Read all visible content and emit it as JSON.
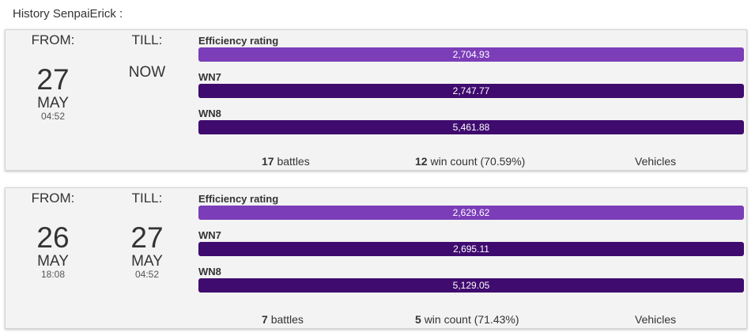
{
  "header": {
    "title": "History SenpaiErick :"
  },
  "labels": {
    "from": "FROM:",
    "till": "TILL:",
    "efficiency": "Efficiency rating",
    "wn7": "WN7",
    "wn8": "WN8",
    "battles_suffix": "battles",
    "wins_suffix": "win count",
    "vehicles": "Vehicles"
  },
  "colors": {
    "efficiency_bar": "#7b3db8",
    "wn_bar": "#3f0b6e",
    "card_bg": "#f3f3f3"
  },
  "cards": [
    {
      "from": {
        "day": "27",
        "month": "MAY",
        "time": "04:52"
      },
      "till": {
        "now": "NOW"
      },
      "efficiency": "2,704.93",
      "wn7": "2,747.77",
      "wn8": "5,461.88",
      "battles": "17",
      "wins": "12",
      "win_pct": "(70.59%)"
    },
    {
      "from": {
        "day": "26",
        "month": "MAY",
        "time": "18:08"
      },
      "till": {
        "day": "27",
        "month": "MAY",
        "time": "04:52"
      },
      "efficiency": "2,629.62",
      "wn7": "2,695.11",
      "wn8": "5,129.05",
      "battles": "7",
      "wins": "5",
      "win_pct": "(71.43%)"
    }
  ]
}
